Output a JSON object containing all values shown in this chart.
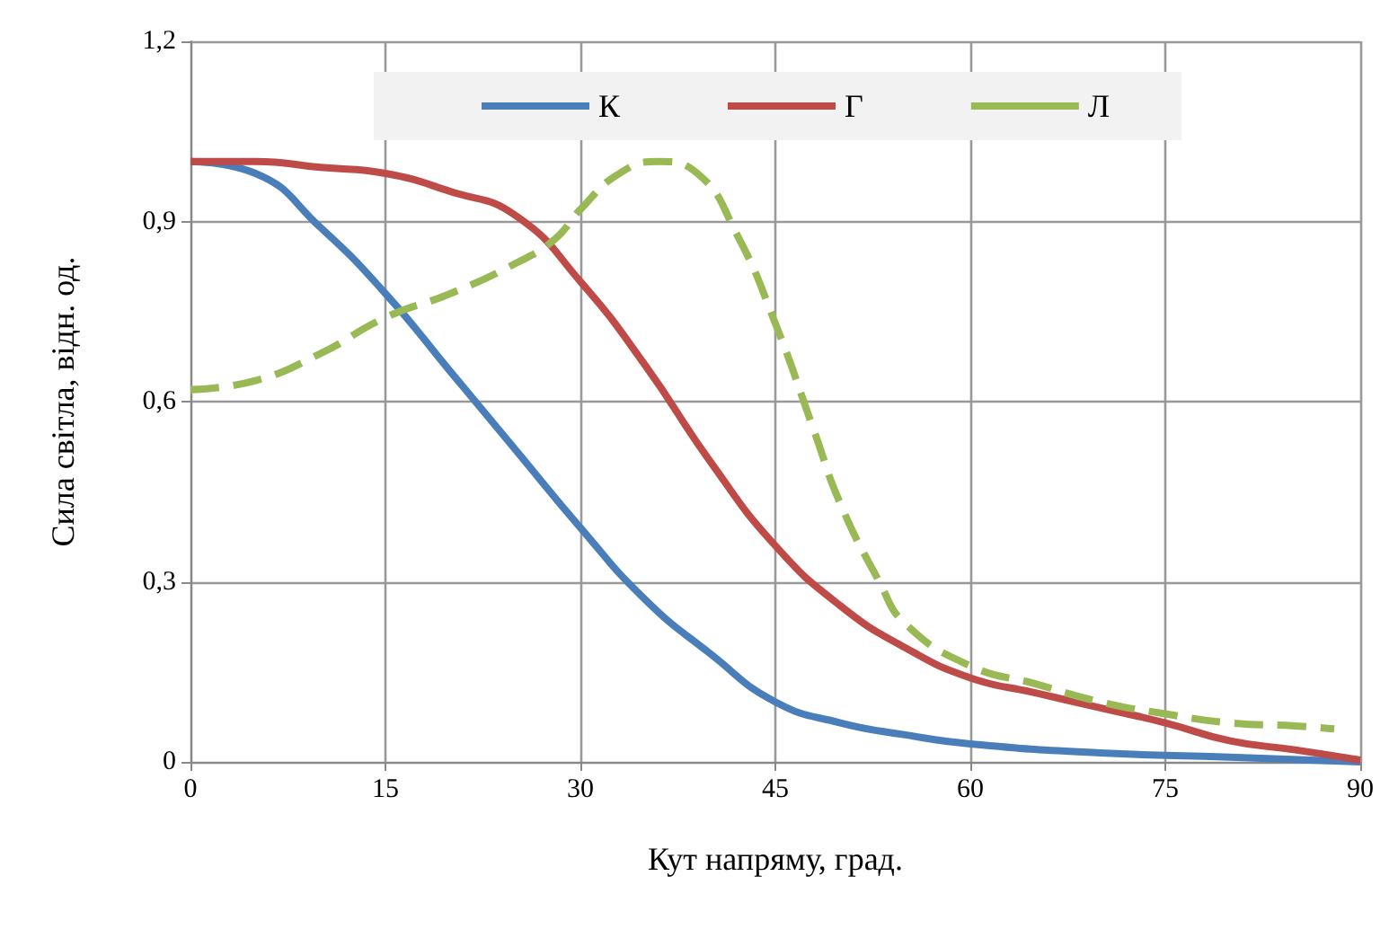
{
  "chart_data": {
    "type": "line",
    "xlabel": "Кут напряму, град.",
    "ylabel": "Сила світла, відн. од.",
    "xlim": [
      0,
      90
    ],
    "xticks": [
      0,
      15,
      30,
      45,
      60,
      75,
      90
    ],
    "ylim": [
      0,
      1.2
    ],
    "yticks": [
      {
        "value": 0,
        "label": "0"
      },
      {
        "value": 0.3,
        "label": "0,3"
      },
      {
        "value": 0.6,
        "label": "0,6"
      },
      {
        "value": 0.9,
        "label": "0,9"
      },
      {
        "value": 1.2,
        "label": "1,2"
      }
    ],
    "grid": true,
    "legend": "top",
    "marker": "none",
    "series": [
      {
        "name": "К",
        "color": "#4a7ebb",
        "line_style": "solid",
        "x": [
          0,
          5,
          10,
          15,
          20,
          25,
          30,
          35,
          40,
          45,
          50,
          55,
          60,
          70,
          80,
          90
        ],
        "values": [
          1.0,
          0.98,
          0.89,
          0.78,
          0.65,
          0.52,
          0.39,
          0.27,
          0.18,
          0.1,
          0.065,
          0.045,
          0.03,
          0.015,
          0.008,
          0.0
        ]
      },
      {
        "name": "Г",
        "color": "#be4b48",
        "line_style": "solid",
        "x": [
          0,
          5,
          10,
          15,
          20,
          25,
          30,
          35,
          40,
          45,
          50,
          55,
          60,
          65,
          70,
          75,
          80,
          85,
          90
        ],
        "values": [
          1.0,
          1.0,
          0.99,
          0.98,
          0.95,
          0.91,
          0.8,
          0.66,
          0.5,
          0.36,
          0.26,
          0.19,
          0.14,
          0.115,
          0.09,
          0.065,
          0.035,
          0.02,
          0.003
        ]
      },
      {
        "name": "Л",
        "color": "#98b954",
        "line_style": "dashed",
        "x": [
          0,
          5,
          10,
          15,
          20,
          25,
          28,
          30,
          33,
          36,
          39,
          42,
          45,
          48,
          50,
          53,
          55,
          60,
          65,
          70,
          75,
          80,
          85,
          88
        ],
        "values": [
          0.62,
          0.635,
          0.68,
          0.74,
          0.78,
          0.83,
          0.87,
          0.92,
          0.98,
          1.0,
          0.98,
          0.88,
          0.73,
          0.55,
          0.43,
          0.3,
          0.23,
          0.16,
          0.13,
          0.1,
          0.08,
          0.065,
          0.06,
          0.055
        ]
      }
    ]
  }
}
